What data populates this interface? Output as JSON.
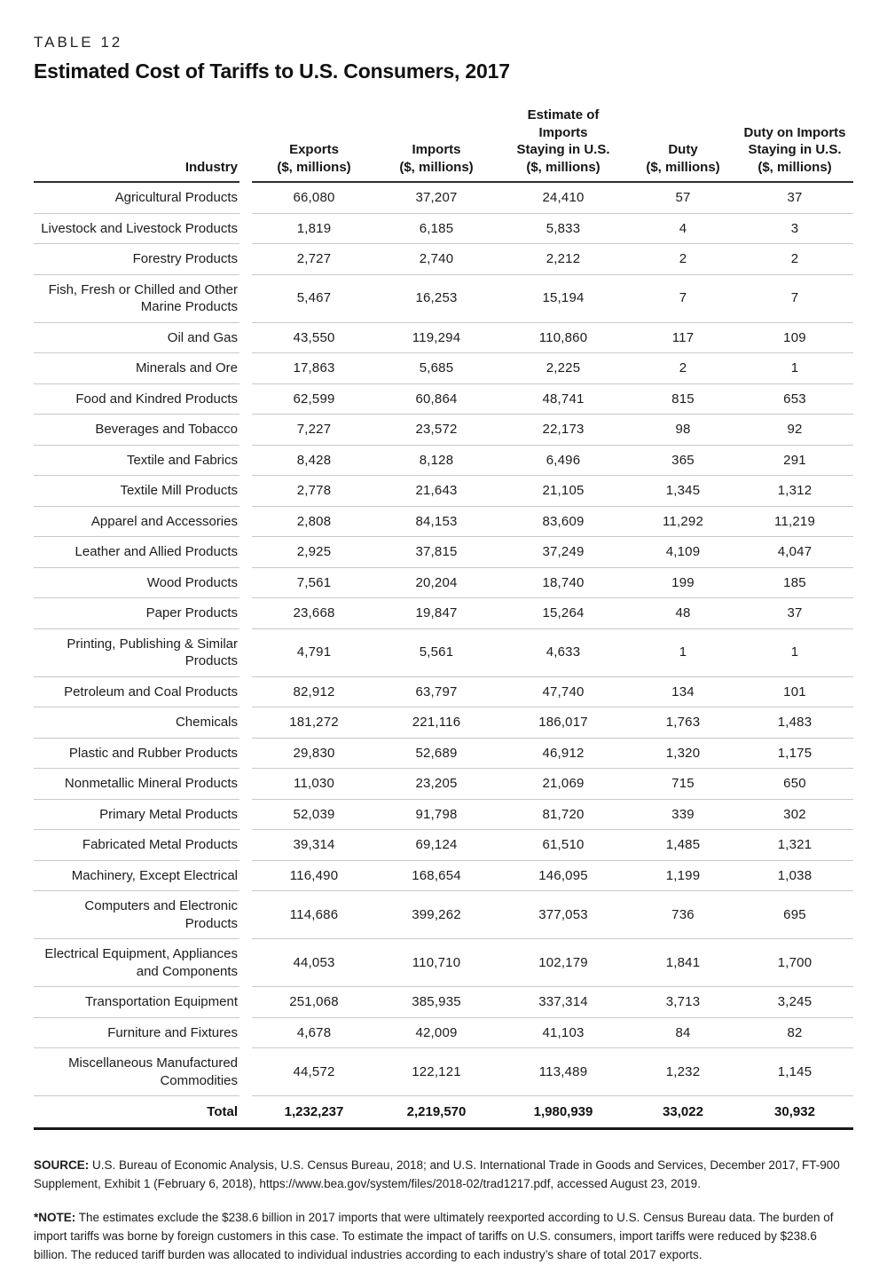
{
  "page": {
    "table_label": "TABLE 12",
    "title": "Estimated Cost of Tariffs to U.S. Consumers, 2017"
  },
  "table": {
    "columns": {
      "industry": "Industry",
      "exports": "Exports\n($, millions)",
      "imports": "Imports\n($, millions)",
      "estimate": "Estimate of\nImports\nStaying in U.S.\n($, millions)",
      "duty": "Duty\n($, millions)",
      "duty_staying": "Duty on Imports\nStaying in U.S.\n($, millions)"
    },
    "rows": [
      {
        "industry": "Agricultural Products",
        "exports": "66,080",
        "imports": "37,207",
        "estimate": "24,410",
        "duty": "57",
        "duty_staying": "37"
      },
      {
        "industry": "Livestock and Livestock Products",
        "exports": "1,819",
        "imports": "6,185",
        "estimate": "5,833",
        "duty": "4",
        "duty_staying": "3"
      },
      {
        "industry": "Forestry Products",
        "exports": "2,727",
        "imports": "2,740",
        "estimate": "2,212",
        "duty": "2",
        "duty_staying": "2"
      },
      {
        "industry": "Fish, Fresh or Chilled and Other Marine Products",
        "exports": "5,467",
        "imports": "16,253",
        "estimate": "15,194",
        "duty": "7",
        "duty_staying": "7"
      },
      {
        "industry": "Oil and Gas",
        "exports": "43,550",
        "imports": "119,294",
        "estimate": "110,860",
        "duty": "117",
        "duty_staying": "109"
      },
      {
        "industry": "Minerals and Ore",
        "exports": "17,863",
        "imports": "5,685",
        "estimate": "2,225",
        "duty": "2",
        "duty_staying": "1"
      },
      {
        "industry": "Food and Kindred Products",
        "exports": "62,599",
        "imports": "60,864",
        "estimate": "48,741",
        "duty": "815",
        "duty_staying": "653"
      },
      {
        "industry": "Beverages and Tobacco",
        "exports": "7,227",
        "imports": "23,572",
        "estimate": "22,173",
        "duty": "98",
        "duty_staying": "92"
      },
      {
        "industry": "Textile and Fabrics",
        "exports": "8,428",
        "imports": "8,128",
        "estimate": "6,496",
        "duty": "365",
        "duty_staying": "291"
      },
      {
        "industry": "Textile Mill Products",
        "exports": "2,778",
        "imports": "21,643",
        "estimate": "21,105",
        "duty": "1,345",
        "duty_staying": "1,312"
      },
      {
        "industry": "Apparel and Accessories",
        "exports": "2,808",
        "imports": "84,153",
        "estimate": "83,609",
        "duty": "11,292",
        "duty_staying": "11,219"
      },
      {
        "industry": "Leather and Allied Products",
        "exports": "2,925",
        "imports": "37,815",
        "estimate": "37,249",
        "duty": "4,109",
        "duty_staying": "4,047"
      },
      {
        "industry": "Wood Products",
        "exports": "7,561",
        "imports": "20,204",
        "estimate": "18,740",
        "duty": "199",
        "duty_staying": "185"
      },
      {
        "industry": "Paper Products",
        "exports": "23,668",
        "imports": "19,847",
        "estimate": "15,264",
        "duty": "48",
        "duty_staying": "37"
      },
      {
        "industry": "Printing, Publishing & Similar Products",
        "exports": "4,791",
        "imports": "5,561",
        "estimate": "4,633",
        "duty": "1",
        "duty_staying": "1"
      },
      {
        "industry": "Petroleum and Coal Products",
        "exports": "82,912",
        "imports": "63,797",
        "estimate": "47,740",
        "duty": "134",
        "duty_staying": "101"
      },
      {
        "industry": "Chemicals",
        "exports": "181,272",
        "imports": "221,116",
        "estimate": "186,017",
        "duty": "1,763",
        "duty_staying": "1,483"
      },
      {
        "industry": "Plastic and Rubber Products",
        "exports": "29,830",
        "imports": "52,689",
        "estimate": "46,912",
        "duty": "1,320",
        "duty_staying": "1,175"
      },
      {
        "industry": "Nonmetallic Mineral Products",
        "exports": "11,030",
        "imports": "23,205",
        "estimate": "21,069",
        "duty": "715",
        "duty_staying": "650"
      },
      {
        "industry": "Primary Metal Products",
        "exports": "52,039",
        "imports": "91,798",
        "estimate": "81,720",
        "duty": "339",
        "duty_staying": "302"
      },
      {
        "industry": "Fabricated Metal Products",
        "exports": "39,314",
        "imports": "69,124",
        "estimate": "61,510",
        "duty": "1,485",
        "duty_staying": "1,321"
      },
      {
        "industry": "Machinery, Except Electrical",
        "exports": "116,490",
        "imports": "168,654",
        "estimate": "146,095",
        "duty": "1,199",
        "duty_staying": "1,038"
      },
      {
        "industry": "Computers and Electronic Products",
        "exports": "114,686",
        "imports": "399,262",
        "estimate": "377,053",
        "duty": "736",
        "duty_staying": "695"
      },
      {
        "industry": "Electrical Equipment, Appliances and Components",
        "exports": "44,053",
        "imports": "110,710",
        "estimate": "102,179",
        "duty": "1,841",
        "duty_staying": "1,700"
      },
      {
        "industry": "Transportation Equipment",
        "exports": "251,068",
        "imports": "385,935",
        "estimate": "337,314",
        "duty": "3,713",
        "duty_staying": "3,245"
      },
      {
        "industry": "Furniture and Fixtures",
        "exports": "4,678",
        "imports": "42,009",
        "estimate": "41,103",
        "duty": "84",
        "duty_staying": "82"
      },
      {
        "industry": "Miscellaneous Manufactured Commodities",
        "exports": "44,572",
        "imports": "122,121",
        "estimate": "113,489",
        "duty": "1,232",
        "duty_staying": "1,145"
      }
    ],
    "total": {
      "label": "Total",
      "exports": "1,232,237",
      "imports": "2,219,570",
      "estimate": "1,980,939",
      "duty": "33,022",
      "duty_staying": "30,932"
    }
  },
  "footnotes": {
    "source_label": "SOURCE:",
    "source_text": "U.S. Bureau of Economic Analysis, U.S. Census Bureau, 2018; and U.S. International Trade in Goods and Services, December 2017, FT-900 Supplement, Exhibit 1 (February 6, 2018), https://www.bea.gov/system/files/2018-02/trad1217.pdf, accessed August 23, 2019.",
    "note_label": "*NOTE:",
    "note_text": "The estimates exclude the $238.6 billion in 2017 imports that were ultimately reexported according to U.S. Census Bureau data. The burden of import tariffs was borne by foreign customers in this case. To estimate the impact of tariffs on U.S. consumers, import tariffs were reduced by $238.6 billion. The reduced tariff burden was allocated to individual industries according to each industry’s share of total 2017 exports."
  }
}
